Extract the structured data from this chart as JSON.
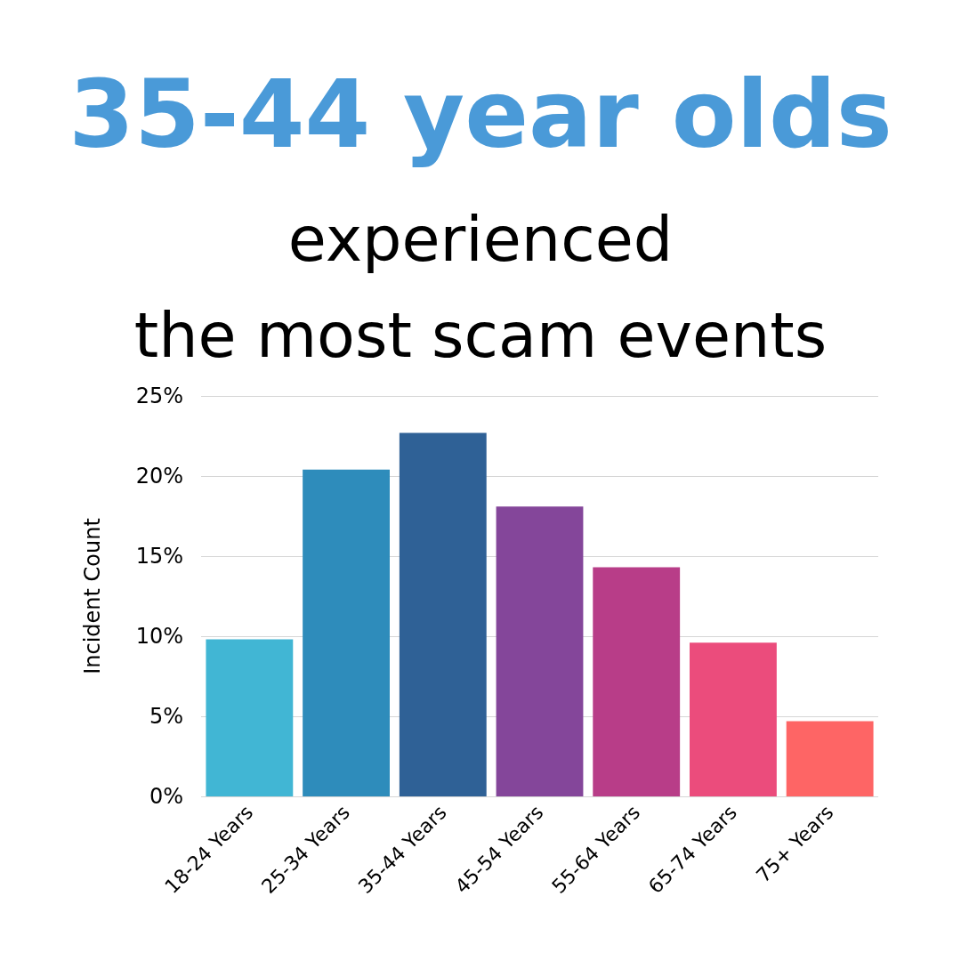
{
  "chart_data": {
    "type": "bar",
    "title": "35-44 year olds",
    "subtitle": "experienced\nthe most scam events",
    "ylabel": "Incident Count",
    "categories": [
      "18-24 Years",
      "25-34 Years",
      "35-44 Years",
      "45-54 Years",
      "55-64 Years",
      "65-74 Years",
      "75+ Years"
    ],
    "values": [
      9.8,
      20.4,
      22.7,
      18.1,
      14.3,
      9.6,
      4.7
    ],
    "colors": [
      "#41b6d4",
      "#2e8cbb",
      "#2f6196",
      "#84469a",
      "#b83d88",
      "#eb4c7c",
      "#fe6565"
    ],
    "ylim": [
      0,
      25
    ],
    "yticks": [
      {
        "value": 0,
        "label": "0%"
      },
      {
        "value": 5,
        "label": "5%"
      },
      {
        "value": 10,
        "label": "10%"
      },
      {
        "value": 15,
        "label": "15%"
      },
      {
        "value": 20,
        "label": "20%"
      },
      {
        "value": 25,
        "label": "25%"
      }
    ],
    "grid": "y"
  }
}
